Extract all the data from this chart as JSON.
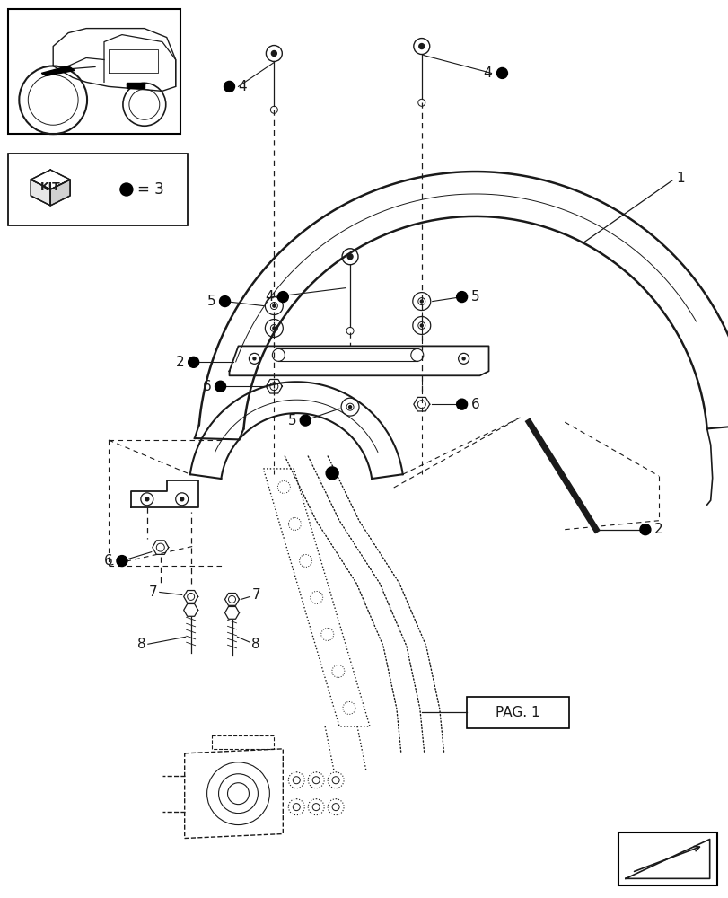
{
  "bg_color": "#ffffff",
  "line_color": "#1a1a1a",
  "fig_width": 8.12,
  "fig_height": 10.0,
  "dpi": 100
}
